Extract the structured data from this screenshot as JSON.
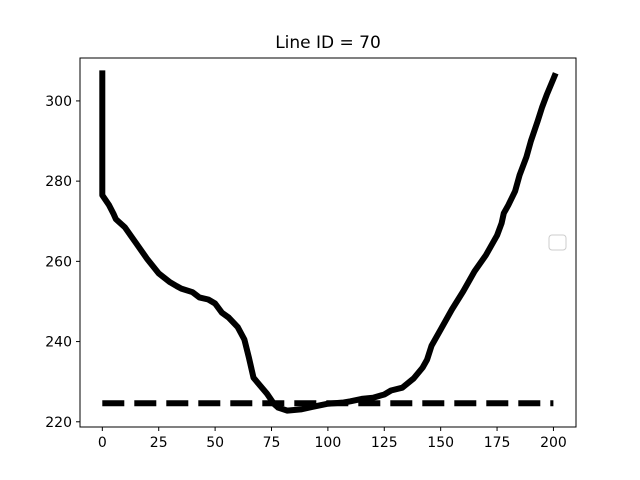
{
  "chart_data": {
    "type": "line",
    "title": "Line ID = 70",
    "xlabel": "",
    "ylabel": "",
    "xlim": [
      -9.9,
      210
    ],
    "ylim": [
      218.7,
      310.7
    ],
    "x_ticks": [
      0,
      25,
      50,
      75,
      100,
      125,
      150,
      175,
      200
    ],
    "y_ticks": [
      220,
      240,
      260,
      280,
      300
    ],
    "grid": false,
    "legend": {
      "placement": "center-right",
      "entries": []
    },
    "series": [
      {
        "style": "solid",
        "color": "#000000",
        "points": [
          [
            0,
            307.6
          ],
          [
            0,
            276.5
          ],
          [
            3,
            274.0
          ],
          [
            5,
            271.8
          ],
          [
            6,
            270.5
          ],
          [
            10,
            268.5
          ],
          [
            15,
            264.5
          ],
          [
            20,
            260.5
          ],
          [
            25,
            257.0
          ],
          [
            30,
            254.8
          ],
          [
            33,
            253.8
          ],
          [
            35,
            253.2
          ],
          [
            40,
            252.3
          ],
          [
            43,
            251.0
          ],
          [
            47,
            250.5
          ],
          [
            50,
            249.5
          ],
          [
            53,
            247.2
          ],
          [
            56,
            246.0
          ],
          [
            60,
            243.6
          ],
          [
            63,
            240.5
          ],
          [
            65,
            236.0
          ],
          [
            67,
            231.0
          ],
          [
            70,
            229.0
          ],
          [
            73,
            227.0
          ],
          [
            76,
            224.5
          ],
          [
            78,
            223.5
          ],
          [
            82,
            222.8
          ],
          [
            88,
            223.1
          ],
          [
            93,
            223.7
          ],
          [
            100,
            224.5
          ],
          [
            107,
            224.8
          ],
          [
            110,
            225.1
          ],
          [
            115,
            225.7
          ],
          [
            120,
            226.0
          ],
          [
            125,
            226.8
          ],
          [
            128,
            227.8
          ],
          [
            133,
            228.5
          ],
          [
            138,
            230.8
          ],
          [
            142,
            233.5
          ],
          [
            144,
            235.5
          ],
          [
            146,
            239.0
          ],
          [
            150,
            243.0
          ],
          [
            155,
            248.0
          ],
          [
            160,
            252.5
          ],
          [
            163,
            255.5
          ],
          [
            165,
            257.5
          ],
          [
            170,
            261.5
          ],
          [
            175,
            266.5
          ],
          [
            177,
            269.5
          ],
          [
            178,
            272.0
          ],
          [
            180,
            274.0
          ],
          [
            183,
            277.5
          ],
          [
            185,
            281.5
          ],
          [
            188,
            286.0
          ],
          [
            190,
            290.0
          ],
          [
            193,
            295.0
          ],
          [
            195,
            298.5
          ],
          [
            197,
            301.5
          ],
          [
            200,
            305.5
          ],
          [
            201,
            306.9
          ]
        ]
      },
      {
        "style": "dashed",
        "color": "#000000",
        "points": [
          [
            0,
            224.6
          ],
          [
            200,
            224.6
          ]
        ]
      }
    ]
  }
}
